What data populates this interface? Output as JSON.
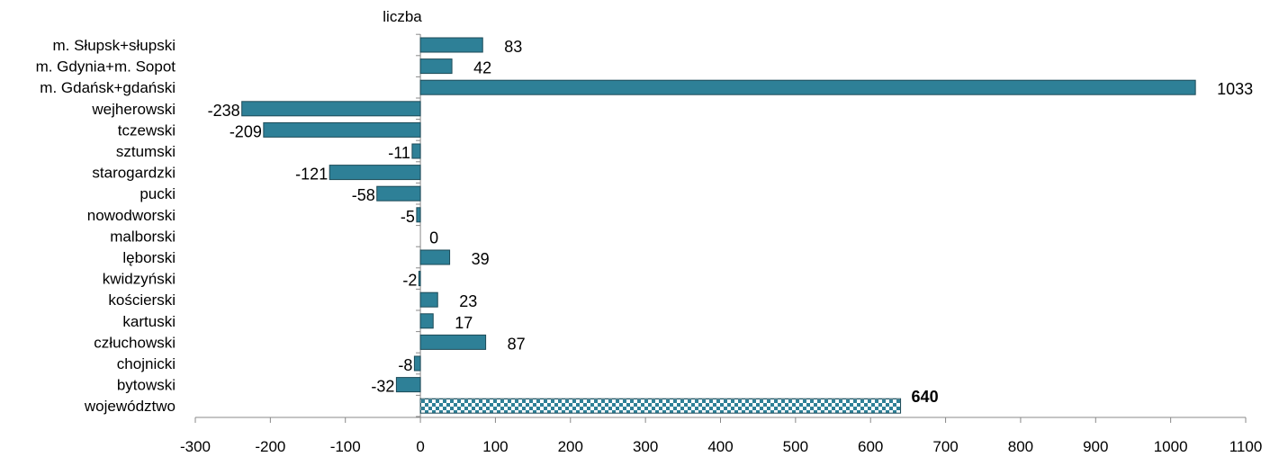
{
  "chart_data": {
    "type": "bar",
    "orientation": "horizontal",
    "ylabel": "liczba",
    "categories": [
      "m. Słupsk+słupski",
      "m. Gdynia+m. Sopot",
      "m. Gdańsk+gdański",
      "wejherowski",
      "tczewski",
      "sztumski",
      "starogardzki",
      "pucki",
      "nowodworski",
      "malborski",
      "lęborski",
      "kwidzyński",
      "kościerski",
      "kartuski",
      "człuchowski",
      "chojnicki",
      "bytowski",
      "województwo"
    ],
    "values": [
      83,
      42,
      1033,
      -238,
      -209,
      -11,
      -121,
      -58,
      -5,
      0,
      39,
      -2,
      23,
      17,
      87,
      -8,
      -32,
      640
    ],
    "data_labels": [
      "83",
      "42",
      "1033",
      "-238",
      "-209",
      "-11",
      "-121",
      "-58",
      "-5",
      "0",
      "39",
      "-2",
      "23",
      "17",
      "87",
      "-8",
      "-32",
      "640"
    ],
    "highlight_category": "województwo",
    "xlim": [
      -300,
      1100
    ],
    "xticks": [
      -300,
      -200,
      -100,
      0,
      100,
      200,
      300,
      400,
      500,
      600,
      700,
      800,
      900,
      1000,
      1100
    ],
    "grid": false,
    "legend": "none",
    "colors": {
      "bar": "#2e8097",
      "bar_stroke": "#1c4a57",
      "highlight": "#2e8097",
      "axis": "#888888"
    }
  }
}
